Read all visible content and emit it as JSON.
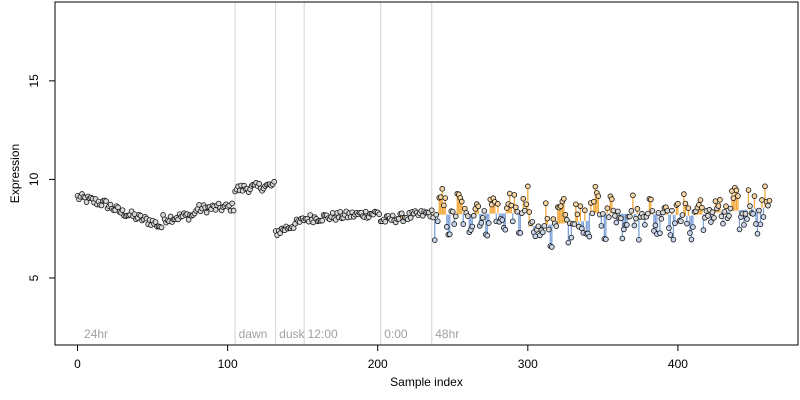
{
  "chart_data": {
    "type": "scatter",
    "xlabel": "Sample index",
    "ylabel": "Expression",
    "xlim": [
      -15,
      480
    ],
    "ylim": [
      1.6,
      19.0
    ],
    "xticks": [
      0,
      100,
      200,
      300,
      400
    ],
    "yticks": [
      5,
      10,
      15
    ],
    "grid": false,
    "baseline": 8.0,
    "annotations": [
      {
        "label": "24hr",
        "x": 3
      },
      {
        "label": "dawn",
        "x": 106
      },
      {
        "label": "dusk",
        "x": 133
      },
      {
        "label": "12:00",
        "x": 152
      },
      {
        "label": "0:00",
        "x": 203
      },
      {
        "label": "48hr",
        "x": 237
      }
    ],
    "separators": [
      105,
      132,
      151,
      202,
      236
    ],
    "segments": [
      {
        "x0": 0,
        "x1": 19,
        "y0": 9.1,
        "y1": 8.75
      },
      {
        "x0": 20,
        "x1": 30,
        "y0": 8.7,
        "y1": 8.3
      },
      {
        "x0": 31,
        "x1": 47,
        "y0": 8.3,
        "y1": 7.9
      },
      {
        "x0": 48,
        "x1": 56,
        "y0": 7.9,
        "y1": 7.6
      },
      {
        "x0": 57,
        "x1": 78,
        "y0": 8.0,
        "y1": 8.2
      },
      {
        "x0": 79,
        "x1": 104,
        "y0": 8.5,
        "y1": 8.6
      },
      {
        "x0": 105,
        "x1": 131,
        "y0": 9.5,
        "y1": 9.7
      },
      {
        "x0": 132,
        "x1": 150,
        "y0": 7.3,
        "y1": 7.9
      },
      {
        "x0": 151,
        "x1": 201,
        "y0": 8.0,
        "y1": 8.3
      },
      {
        "x0": 202,
        "x1": 235,
        "y0": 7.9,
        "y1": 8.3
      },
      {
        "x0": 236,
        "x1": 300,
        "y0": 8.2,
        "y1": 8.3
      },
      {
        "x0": 301,
        "x1": 340,
        "y0": 7.6,
        "y1": 7.9
      },
      {
        "x0": 341,
        "x1": 400,
        "y0": 8.3,
        "y1": 8.2
      },
      {
        "x0": 401,
        "x1": 461,
        "y0": 8.1,
        "y1": 8.6
      }
    ],
    "wavy_from": 236,
    "n_points": 462,
    "colors": {
      "above": "#f2a93b",
      "below": "#7fa3d9",
      "baseline": "#a9a9a9",
      "point_edge": "#111111",
      "axis": "#000000",
      "separator": "#d3d3d3",
      "annotation": "#a0a0a0"
    },
    "point_colors": {
      "high": "#f7d6a3",
      "low": "#c9d7ee",
      "mid": "#d9d9d9"
    }
  }
}
